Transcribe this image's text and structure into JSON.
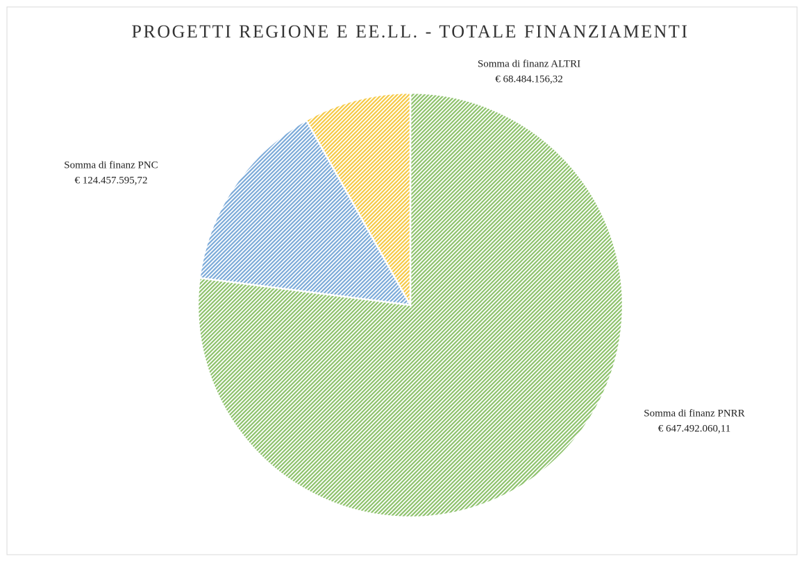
{
  "chart_data": {
    "type": "pie",
    "title": "PROGETTI REGIONE E EE.LL. - TOTALE FINANZIAMENTI",
    "categories": [
      "Somma di finanz PNRR",
      "Somma di finanz PNC",
      "Somma di finanz ALTRI"
    ],
    "values": [
      647492060.11,
      124457595.72,
      68484156.32
    ],
    "value_labels": [
      "€ 647.492.060,11",
      "€ 124.457.595,72",
      "€ 68.484.156,32"
    ],
    "colors": [
      "#8cc16a",
      "#7aa9d8",
      "#f5c842"
    ]
  }
}
